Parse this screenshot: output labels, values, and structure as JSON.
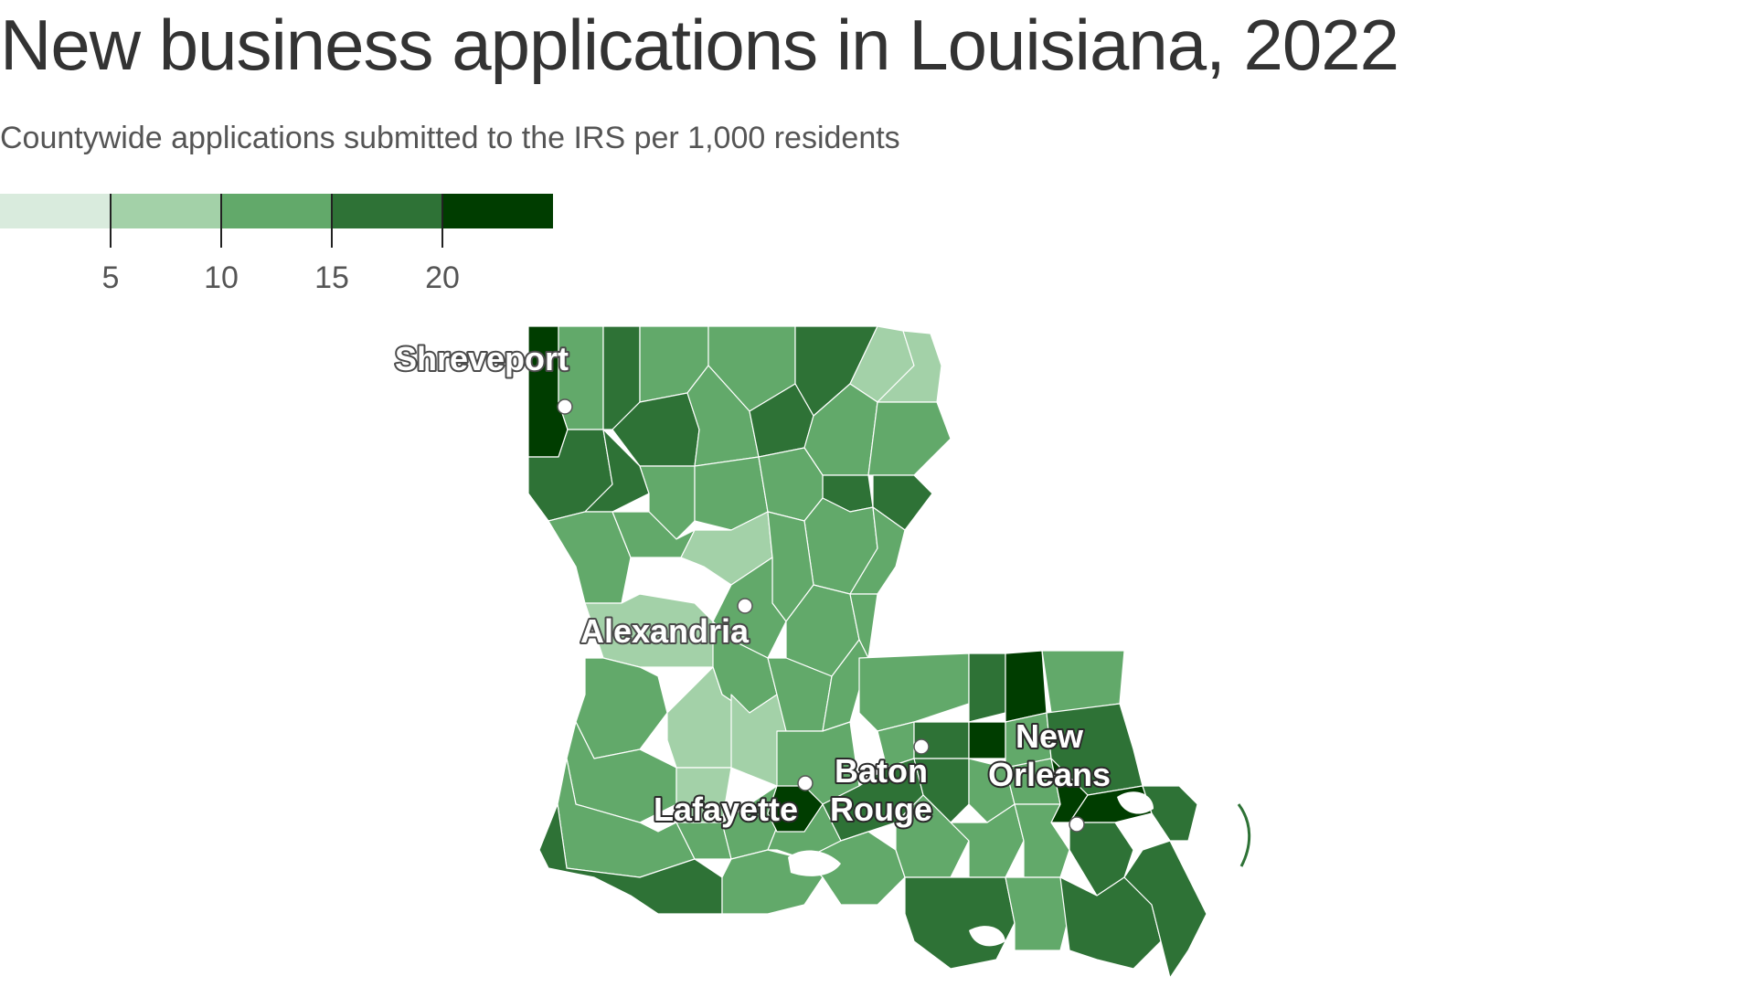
{
  "title": "New business applications in Louisiana, 2022",
  "subtitle": "Countywide applications submitted to the IRS per 1,000 residents",
  "legend": {
    "colors": [
      "#d9ebdd",
      "#a3d1a8",
      "#62a96a",
      "#2e7236",
      "#003d00"
    ],
    "ticks": [
      "5",
      "10",
      "15",
      "20"
    ]
  },
  "map": {
    "cities": [
      {
        "name": "Shreveport",
        "lines": [
          "Shreveport"
        ]
      },
      {
        "name": "Alexandria",
        "lines": [
          "Alexandria"
        ]
      },
      {
        "name": "Lafayette",
        "lines": [
          "Lafayette"
        ]
      },
      {
        "name": "Baton Rouge",
        "lines": [
          "Baton",
          "Rouge"
        ]
      },
      {
        "name": "New Orleans",
        "lines": [
          "New",
          "Orleans"
        ]
      }
    ],
    "colors": {
      "lightest": "#d9ebdd",
      "light": "#a3d1a8",
      "mid": "#62a96a",
      "dark": "#2e7236",
      "darkest": "#003d00",
      "border": "#ffffff"
    }
  }
}
